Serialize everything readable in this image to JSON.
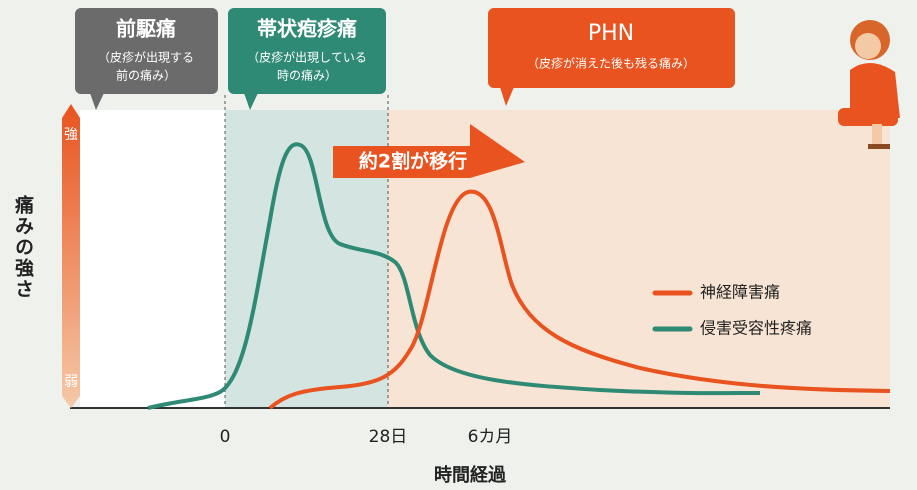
{
  "phases": [
    {
      "title": "前駆痛",
      "note": [
        "（皮疹が出現する",
        "前の痛み）"
      ]
    },
    {
      "title": "帯状疱疹痛",
      "note": [
        "（皮疹が出現している",
        "時の痛み）"
      ]
    },
    {
      "title": "PHN",
      "note": [
        "（皮疹が消えた後も残る痛み）"
      ]
    }
  ],
  "arrow_label": "約2割が移行",
  "y_axis": {
    "label": "痛みの強さ",
    "high": "強",
    "low": "弱"
  },
  "x_axis": {
    "label": "時間経過",
    "ticks": [
      "0",
      "28日",
      "6カ月"
    ]
  },
  "legend": [
    {
      "name": "神経障害痛",
      "color": "#e8531f"
    },
    {
      "name": "侵害受容性疼痛",
      "color": "#2e8a74"
    }
  ]
}
